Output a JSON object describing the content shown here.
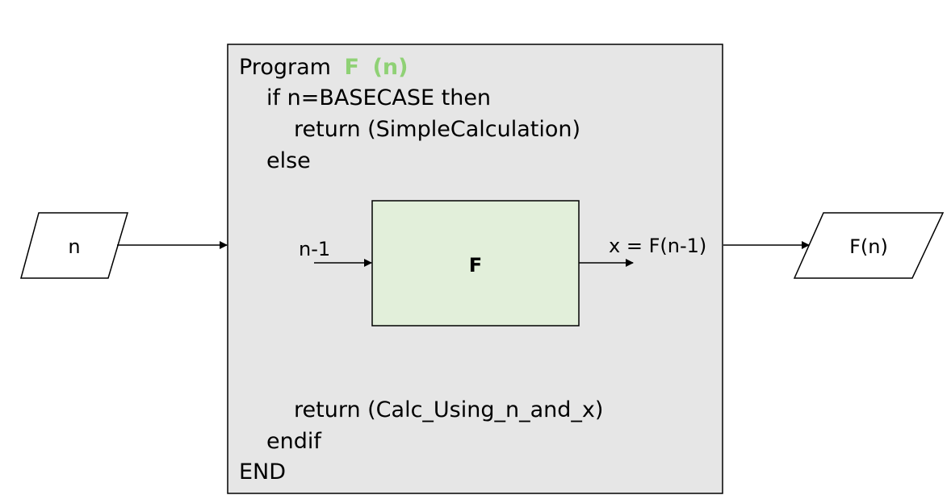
{
  "colors": {
    "program_fill": "#e6e6e6",
    "inner_fill": "#e2efda",
    "highlight": "#8fd175",
    "stroke": "#000000"
  },
  "input": {
    "label": "n"
  },
  "output": {
    "label": "F(n)"
  },
  "program": {
    "keyword": "Program",
    "func_name": "F",
    "func_param": "(n)",
    "line_if": "if n=BASECASE then",
    "line_return_simple": "return (SimpleCalculation)",
    "line_else": "else",
    "line_return_calc": "return (Calc_Using_n_and_x)",
    "line_endif": "endif",
    "line_end": "END"
  },
  "inner": {
    "label": "F",
    "input_label": "n-1",
    "output_label": "x = F(n-1)"
  }
}
